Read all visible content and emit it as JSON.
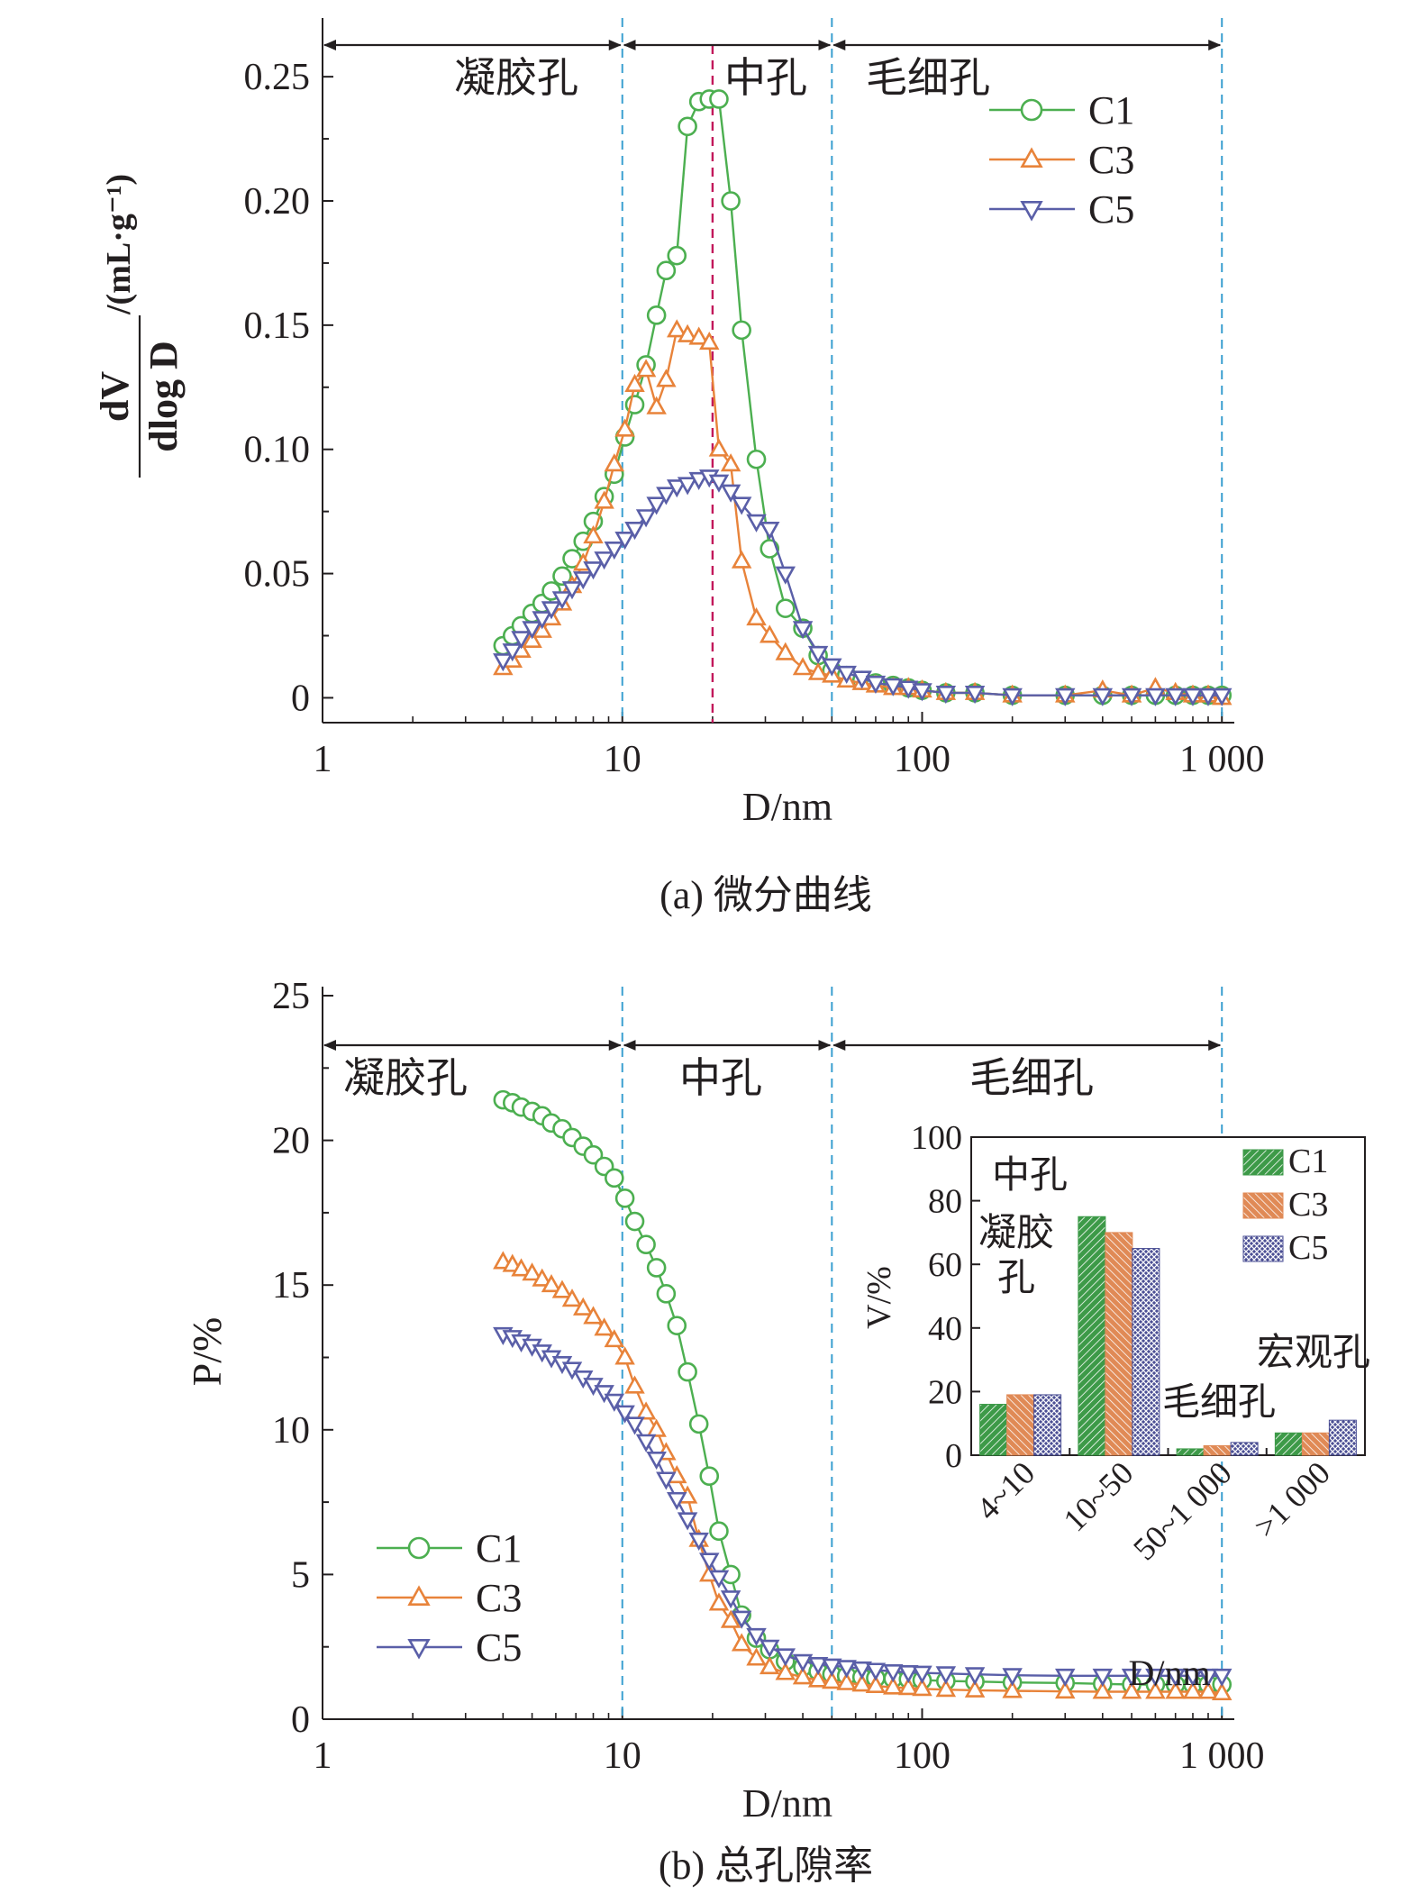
{
  "chart_data": [
    {
      "type": "line",
      "id": "a",
      "caption": "(a) 微分曲线",
      "xlabel": "D/nm",
      "ylabel_num": "dV",
      "ylabel_den": "dlog D",
      "ylabel_unit": "/(mL·g⁻¹)",
      "xscale": "log",
      "xlim": [
        1,
        1100
      ],
      "ylim": [
        -0.01,
        0.27
      ],
      "xticks": [
        1,
        10,
        100,
        1000
      ],
      "xtick_labels": [
        "1",
        "10",
        "100",
        "1 000"
      ],
      "yticks": [
        0,
        0.05,
        0.1,
        0.15,
        0.2,
        0.25
      ],
      "ytick_labels": [
        "0",
        "0.05",
        "0.10",
        "0.15",
        "0.20",
        "0.25"
      ],
      "region_bounds": [
        10,
        50,
        1000
      ],
      "peak_line": 20,
      "regions": [
        {
          "label": "凝胶孔",
          "from": 1,
          "to": 10
        },
        {
          "label": "中孔",
          "from": 10,
          "to": 50
        },
        {
          "label": "毛细孔",
          "from": 50,
          "to": 1000
        }
      ],
      "legend": "top-right",
      "series": [
        {
          "name": "C1",
          "color": "#4caf50",
          "marker": "circle",
          "x": [
            4,
            4.3,
            4.6,
            5,
            5.4,
            5.8,
            6.3,
            6.8,
            7.4,
            8,
            8.7,
            9.4,
            10.2,
            11,
            12,
            13,
            14,
            15.2,
            16.5,
            18,
            19.5,
            21,
            23,
            25,
            28,
            31,
            35,
            40,
            45,
            50,
            56,
            63,
            70,
            80,
            90,
            100,
            120,
            150,
            200,
            300,
            400,
            500,
            600,
            700,
            800,
            900,
            1000
          ],
          "y": [
            0.021,
            0.025,
            0.029,
            0.034,
            0.038,
            0.043,
            0.049,
            0.056,
            0.063,
            0.071,
            0.081,
            0.09,
            0.105,
            0.118,
            0.134,
            0.154,
            0.172,
            0.178,
            0.23,
            0.24,
            0.241,
            0.241,
            0.2,
            0.148,
            0.096,
            0.06,
            0.036,
            0.028,
            0.017,
            0.011,
            0.009,
            0.007,
            0.006,
            0.005,
            0.004,
            0.003,
            0.002,
            0.002,
            0.001,
            0.001,
            0.001,
            0.001,
            0.001,
            0.001,
            0.001,
            0.001,
            0.001
          ]
        },
        {
          "name": "C3",
          "color": "#e8833a",
          "marker": "triangle-up",
          "x": [
            4,
            4.3,
            4.6,
            5,
            5.4,
            5.8,
            6.3,
            6.8,
            7.4,
            8,
            8.7,
            9.4,
            10.2,
            11,
            12,
            13,
            14,
            15.2,
            16.5,
            18,
            19.5,
            21,
            23,
            25,
            28,
            31,
            35,
            40,
            45,
            50,
            56,
            63,
            70,
            80,
            90,
            100,
            120,
            150,
            200,
            300,
            400,
            500,
            600,
            700,
            800,
            900,
            1000
          ],
          "y": [
            0.012,
            0.015,
            0.019,
            0.023,
            0.027,
            0.032,
            0.038,
            0.045,
            0.054,
            0.065,
            0.079,
            0.094,
            0.108,
            0.126,
            0.132,
            0.117,
            0.128,
            0.148,
            0.146,
            0.145,
            0.143,
            0.1,
            0.094,
            0.055,
            0.032,
            0.025,
            0.018,
            0.012,
            0.01,
            0.009,
            0.007,
            0.006,
            0.005,
            0.004,
            0.004,
            0.003,
            0.002,
            0.002,
            0.001,
            0.001,
            0.003,
            0.001,
            0.004,
            0.002,
            0.001,
            0.001,
            0.0
          ]
        },
        {
          "name": "C5",
          "color": "#5a5fa8",
          "marker": "triangle-down",
          "x": [
            4,
            4.3,
            4.6,
            5,
            5.4,
            5.8,
            6.3,
            6.8,
            7.4,
            8,
            8.7,
            9.4,
            10.2,
            11,
            12,
            13,
            14,
            15.2,
            16.5,
            18,
            19.5,
            21,
            23,
            25,
            28,
            31,
            35,
            40,
            45,
            50,
            56,
            63,
            70,
            80,
            90,
            100,
            120,
            150,
            200,
            300,
            400,
            500,
            600,
            700,
            800,
            900,
            1000
          ],
          "y": [
            0.015,
            0.019,
            0.024,
            0.028,
            0.032,
            0.036,
            0.04,
            0.044,
            0.048,
            0.052,
            0.056,
            0.06,
            0.064,
            0.068,
            0.073,
            0.078,
            0.082,
            0.085,
            0.086,
            0.088,
            0.089,
            0.087,
            0.083,
            0.078,
            0.071,
            0.068,
            0.05,
            0.028,
            0.018,
            0.013,
            0.01,
            0.008,
            0.006,
            0.005,
            0.004,
            0.003,
            0.002,
            0.002,
            0.001,
            0.001,
            0.001,
            0.001,
            0.001,
            0.001,
            0.001,
            0.001,
            0.001
          ]
        }
      ]
    },
    {
      "type": "line",
      "id": "b",
      "caption": "(b) 总孔隙率",
      "xlabel": "D/nm",
      "ylabel": "P/%",
      "xscale": "log",
      "xlim": [
        1,
        1100
      ],
      "ylim": [
        0,
        25
      ],
      "xticks": [
        1,
        10,
        100,
        1000
      ],
      "xtick_labels": [
        "1",
        "10",
        "100",
        "1 000"
      ],
      "yticks": [
        0,
        5,
        10,
        15,
        20,
        25
      ],
      "ytick_labels": [
        "0",
        "5",
        "10",
        "15",
        "20",
        "25"
      ],
      "region_bounds": [
        10,
        50,
        1000
      ],
      "regions": [
        {
          "label": "凝胶孔",
          "from": 1,
          "to": 10
        },
        {
          "label": "中孔",
          "from": 10,
          "to": 50
        },
        {
          "label": "毛细孔",
          "from": 50,
          "to": 1000
        }
      ],
      "legend": "bottom-left",
      "series": [
        {
          "name": "C1",
          "color": "#4caf50",
          "marker": "circle",
          "x": [
            4,
            4.3,
            4.6,
            5,
            5.4,
            5.8,
            6.3,
            6.8,
            7.4,
            8,
            8.7,
            9.4,
            10.2,
            11,
            12,
            13,
            14,
            15.2,
            16.5,
            18,
            19.5,
            21,
            23,
            25,
            28,
            31,
            35,
            40,
            45,
            50,
            56,
            63,
            70,
            80,
            90,
            100,
            120,
            150,
            200,
            300,
            400,
            500,
            600,
            700,
            800,
            900,
            1000
          ],
          "y": [
            21.4,
            21.3,
            21.15,
            21.0,
            20.85,
            20.6,
            20.4,
            20.1,
            19.8,
            19.5,
            19.1,
            18.7,
            18.0,
            17.2,
            16.4,
            15.6,
            14.7,
            13.6,
            12.0,
            10.2,
            8.4,
            6.5,
            5.0,
            3.6,
            2.8,
            2.4,
            2.0,
            1.8,
            1.65,
            1.55,
            1.5,
            1.45,
            1.42,
            1.4,
            1.38,
            1.35,
            1.32,
            1.3,
            1.27,
            1.25,
            1.22,
            1.2,
            1.2,
            1.2,
            1.2,
            1.2,
            1.2
          ]
        },
        {
          "name": "C3",
          "color": "#e8833a",
          "marker": "triangle-up",
          "x": [
            4,
            4.3,
            4.6,
            5,
            5.4,
            5.8,
            6.3,
            6.8,
            7.4,
            8,
            8.7,
            9.4,
            10.2,
            11,
            12,
            13,
            14,
            15.2,
            16.5,
            18,
            19.5,
            21,
            23,
            25,
            28,
            31,
            35,
            40,
            45,
            50,
            56,
            63,
            70,
            80,
            90,
            100,
            120,
            150,
            200,
            300,
            400,
            500,
            600,
            700,
            800,
            900,
            1000
          ],
          "y": [
            15.8,
            15.7,
            15.55,
            15.4,
            15.2,
            15.0,
            14.8,
            14.5,
            14.2,
            13.9,
            13.5,
            13.1,
            12.5,
            11.5,
            10.6,
            10.0,
            9.2,
            8.4,
            7.7,
            6.2,
            5.0,
            4.0,
            3.4,
            2.6,
            2.1,
            1.8,
            1.6,
            1.45,
            1.35,
            1.3,
            1.25,
            1.2,
            1.15,
            1.1,
            1.08,
            1.05,
            1.02,
            1.0,
            0.98,
            0.96,
            0.95,
            0.95,
            0.95,
            0.95,
            0.95,
            0.95,
            0.9
          ]
        },
        {
          "name": "C5",
          "color": "#5a5fa8",
          "marker": "triangle-down",
          "x": [
            4,
            4.3,
            4.6,
            5,
            5.4,
            5.8,
            6.3,
            6.8,
            7.4,
            8,
            8.7,
            9.4,
            10.2,
            11,
            12,
            13,
            14,
            15.2,
            16.5,
            18,
            19.5,
            21,
            23,
            25,
            28,
            31,
            35,
            40,
            45,
            50,
            56,
            63,
            70,
            80,
            90,
            100,
            120,
            150,
            200,
            300,
            400,
            500,
            600,
            700,
            800,
            900,
            1000
          ],
          "y": [
            13.3,
            13.2,
            13.05,
            12.9,
            12.7,
            12.5,
            12.3,
            12.1,
            11.8,
            11.55,
            11.3,
            11.0,
            10.6,
            10.2,
            9.6,
            9.0,
            8.3,
            7.6,
            6.9,
            6.2,
            5.5,
            4.9,
            4.2,
            3.5,
            2.9,
            2.5,
            2.2,
            2.0,
            1.9,
            1.85,
            1.8,
            1.75,
            1.7,
            1.65,
            1.62,
            1.6,
            1.58,
            1.55,
            1.52,
            1.5,
            1.5,
            1.5,
            1.5,
            1.5,
            1.5,
            1.5,
            1.5
          ]
        }
      ],
      "inset": {
        "type": "bar",
        "xlabel": "D/nm",
        "ylabel": "V/%",
        "ylim": [
          0,
          100
        ],
        "yticks": [
          0,
          20,
          40,
          60,
          80,
          100
        ],
        "ytick_labels": [
          "0",
          "20",
          "40",
          "60",
          "80",
          "100"
        ],
        "categories": [
          "4~10",
          "10~50",
          "50~1 000",
          ">1 000"
        ],
        "category_annotations": [
          "凝胶\n孔",
          "中孔",
          "毛细孔",
          "宏观孔"
        ],
        "legend": "top-right",
        "series": [
          {
            "name": "C1",
            "color": "#3d9a48",
            "values": [
              16,
              75,
              2,
              7
            ]
          },
          {
            "name": "C3",
            "color": "#e08a56",
            "values": [
              19,
              70,
              3,
              7
            ]
          },
          {
            "name": "C5",
            "color": "#4b4f94",
            "values": [
              19,
              65,
              4,
              11
            ]
          }
        ]
      }
    }
  ]
}
